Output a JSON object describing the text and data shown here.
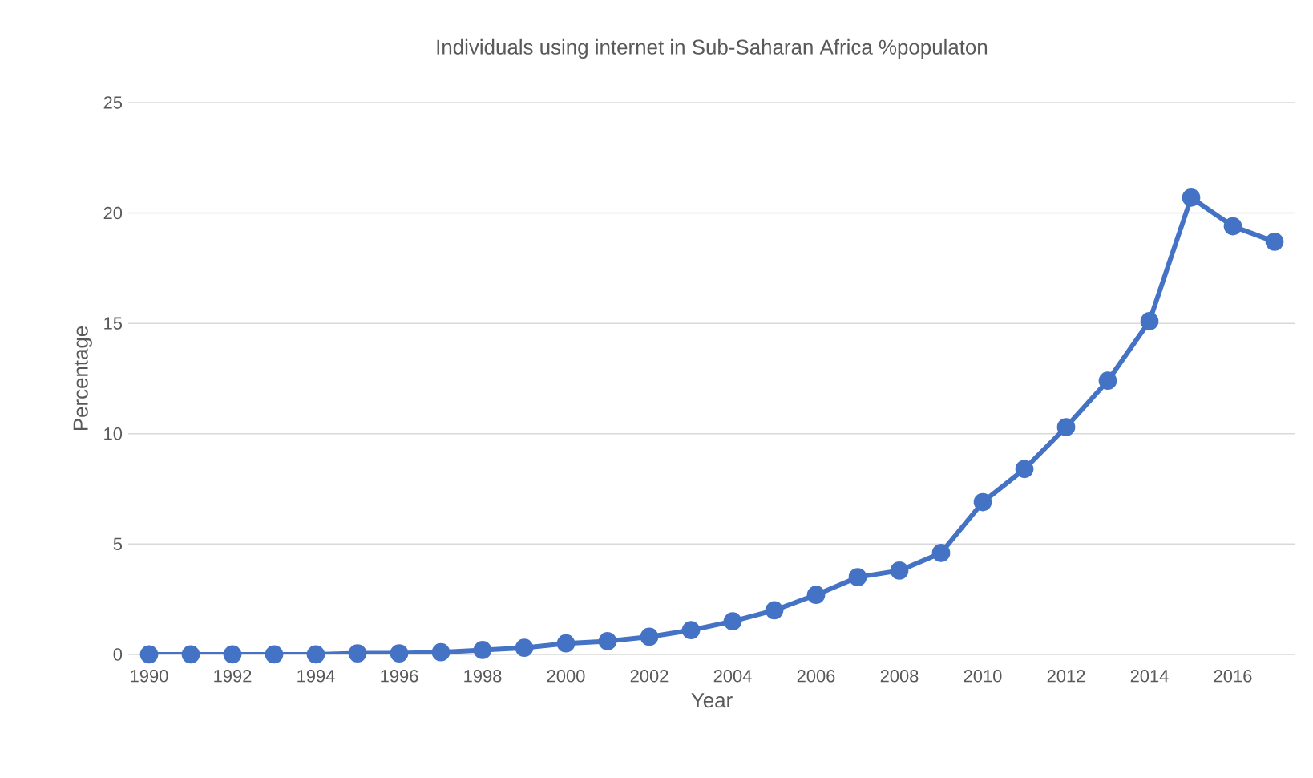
{
  "chart_data": {
    "type": "line",
    "title": "Individuals using internet in Sub-Saharan Africa %populaton",
    "xlabel": "Year",
    "ylabel": "Percentage",
    "x": [
      1990,
      1991,
      1992,
      1993,
      1994,
      1995,
      1996,
      1997,
      1998,
      1999,
      2000,
      2001,
      2002,
      2003,
      2004,
      2005,
      2006,
      2007,
      2008,
      2009,
      2010,
      2011,
      2012,
      2013,
      2014,
      2015,
      2016,
      2017
    ],
    "series": [
      {
        "color": "#4472c4",
        "values": [
          0,
          0,
          0,
          0,
          0,
          0.05,
          0.05,
          0.1,
          0.2,
          0.3,
          0.5,
          0.6,
          0.8,
          1.1,
          1.5,
          2.0,
          2.7,
          3.5,
          3.8,
          4.6,
          6.9,
          8.4,
          10.3,
          12.4,
          15.1,
          20.7,
          19.4,
          18.7
        ]
      }
    ],
    "xlim": [
      1989.5,
      2017.5
    ],
    "xticks": [
      1990,
      1992,
      1994,
      1996,
      1998,
      2000,
      2002,
      2004,
      2006,
      2008,
      2010,
      2012,
      2014,
      2016
    ],
    "ylim": [
      0,
      25
    ],
    "yticks": [
      0,
      5,
      10,
      15,
      20,
      25
    ],
    "grid": "y",
    "marker": "circle",
    "line_style": "solid"
  }
}
